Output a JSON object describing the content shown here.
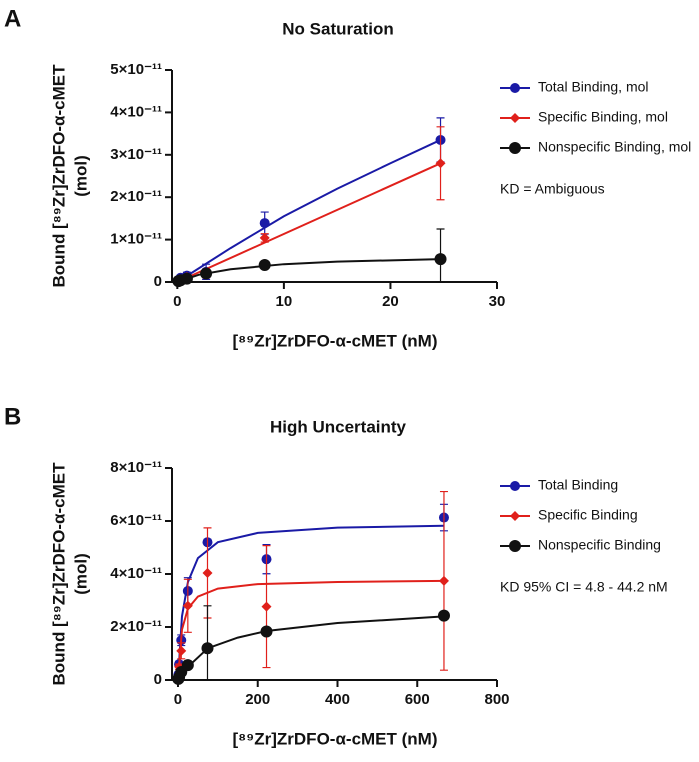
{
  "chart_data": [
    {
      "type": "scatter",
      "panel": "A",
      "title": "No Saturation",
      "xlabel": "[⁸⁹Zr]ZrDFO-α-cMET (nM)",
      "ylabel": [
        "Bound [⁸⁹Zr]ZrDFO-α-cMET",
        "(mol)"
      ],
      "xlim": [
        -0.5,
        30
      ],
      "xticks": [
        0,
        10,
        20,
        30
      ],
      "ylim": [
        0,
        5e-11
      ],
      "yticks": [
        0,
        {
          "value": 1e-11,
          "label": "1×10⁻¹¹"
        },
        {
          "value": 2e-11,
          "label": "2×10⁻¹¹"
        },
        {
          "value": 3e-11,
          "label": "3×10⁻¹¹"
        },
        {
          "value": 4e-11,
          "label": "4×10⁻¹¹"
        },
        {
          "value": 5e-11,
          "label": "5×10⁻¹¹"
        }
      ],
      "annotation": "KD = Ambiguous",
      "x": [
        0.1,
        0.3,
        0.9,
        2.7,
        8.2,
        24.7
      ],
      "series": [
        {
          "name": "Total Binding, mol",
          "color": "#1a1aa6",
          "marker": "circle",
          "values": [
            5e-13,
            1e-12,
            1.5e-12,
            2.4e-12,
            1.39e-11,
            3.35e-11
          ],
          "errors": [
            2e-13,
            3e-13,
            8e-13,
            1.8e-12,
            2.6e-12,
            5.2e-12
          ],
          "fit_x": [
            0,
            5,
            10,
            15,
            20,
            24.7
          ],
          "fit_values": [
            0,
            8e-12,
            1.55e-11,
            2.2e-11,
            2.8e-11,
            3.35e-11
          ]
        },
        {
          "name": "Specific Binding, mol",
          "color": "#e0201b",
          "marker": "diamond",
          "values": [
            2e-13,
            5e-13,
            1.2e-12,
            2e-12,
            1.04e-11,
            2.8e-11
          ],
          "errors": [
            1e-13,
            2e-13,
            5e-13,
            1e-12,
            1e-12,
            8.6e-12
          ],
          "fit_x": [
            0,
            24.7
          ],
          "fit_values": [
            0,
            2.8e-11
          ]
        },
        {
          "name": "Nonspecific Binding, mol",
          "color": "#111111",
          "marker": "circle-large",
          "values": [
            2e-13,
            4e-13,
            8e-13,
            2e-12,
            4e-12,
            5.4e-12
          ],
          "errors": [
            1e-13,
            1e-13,
            3e-13,
            6e-13,
            5e-13,
            7.1e-12
          ],
          "fit_x": [
            0,
            2,
            5,
            10,
            15,
            24.7
          ],
          "fit_values": [
            0,
            1.7e-12,
            3e-12,
            4.2e-12,
            4.8e-12,
            5.4e-12
          ]
        }
      ]
    },
    {
      "type": "scatter",
      "panel": "B",
      "title": "High Uncertainty",
      "xlabel": "[⁸⁹Zr]ZrDFO-α-cMET (nM)",
      "ylabel": [
        "Bound [⁸⁹Zr]ZrDFO-α-cMET",
        "(mol)"
      ],
      "xlim": [
        -15,
        800
      ],
      "xticks": [
        0,
        200,
        400,
        600,
        800
      ],
      "ylim": [
        0,
        8e-11
      ],
      "yticks": [
        0,
        {
          "value": 2e-11,
          "label": "2×10⁻¹¹"
        },
        {
          "value": 4e-11,
          "label": "4×10⁻¹¹"
        },
        {
          "value": 6e-11,
          "label": "6×10⁻¹¹"
        },
        {
          "value": 8e-11,
          "label": "8×10⁻¹¹"
        }
      ],
      "annotation": "KD 95% CI = 4.8 - 44.2 nM",
      "x": [
        0.9,
        2.7,
        8.2,
        24.7,
        74,
        222,
        667
      ],
      "series": [
        {
          "name": "Total Binding",
          "color": "#1a1aa6",
          "marker": "circle",
          "values": [
            2e-12,
            6e-12,
            1.5e-11,
            3.36e-11,
            5.2e-11,
            4.56e-11,
            6.13e-11
          ],
          "errors": [
            5e-13,
            1e-12,
            2e-12,
            5e-12,
            0,
            5.5e-12,
            5e-12
          ],
          "fit_x": [
            0,
            10,
            25,
            50,
            100,
            200,
            400,
            667
          ],
          "fit_values": [
            0,
            2.4e-11,
            3.7e-11,
            4.6e-11,
            5.2e-11,
            5.55e-11,
            5.75e-11,
            5.82e-11
          ]
        },
        {
          "name": "Specific Binding",
          "color": "#e0201b",
          "marker": "diamond",
          "values": [
            1.5e-12,
            5e-12,
            1.1e-11,
            2.8e-11,
            4.04e-11,
            2.77e-11,
            3.74e-11
          ],
          "errors": [
            5e-13,
            1e-12,
            3e-12,
            1e-11,
            1.7e-11,
            2.3e-11,
            3.37e-11
          ],
          "fit_x": [
            0,
            10,
            25,
            50,
            100,
            200,
            400,
            667
          ],
          "fit_values": [
            0,
            1.9e-11,
            2.7e-11,
            3.15e-11,
            3.45e-11,
            3.62e-11,
            3.7e-11,
            3.74e-11
          ]
        },
        {
          "name": "Nonspecific Binding",
          "color": "#111111",
          "marker": "circle-large",
          "values": [
            4e-13,
            1e-12,
            3e-12,
            5.6e-12,
            1.2e-11,
            1.83e-11,
            2.43e-11
          ],
          "errors": [
            1e-13,
            3e-13,
            5e-13,
            1e-12,
            1.6e-11,
            1e-12,
            1e-12
          ],
          "fit_x": [
            0,
            25,
            75,
            150,
            222,
            400,
            667
          ],
          "fit_values": [
            0,
            5e-12,
            1.2e-11,
            1.6e-11,
            1.85e-11,
            2.15e-11,
            2.4e-11
          ]
        }
      ]
    }
  ]
}
